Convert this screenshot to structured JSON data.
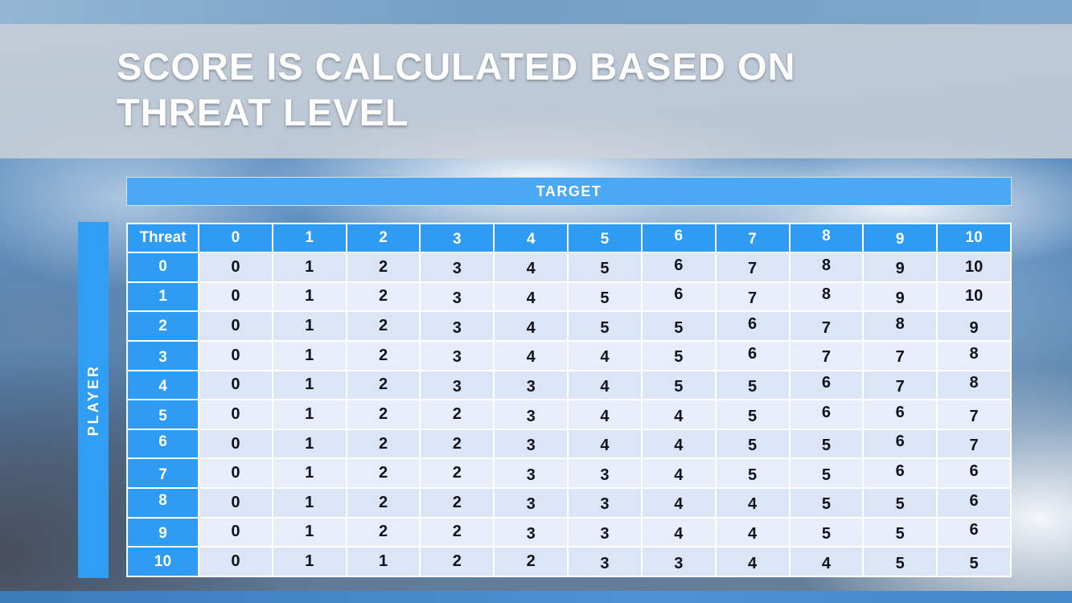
{
  "slide": {
    "title_line1": "SCORE IS CALCULATED BASED ON",
    "title_line2": "THREAT LEVEL"
  },
  "colors": {
    "header_blue": "#2d9cf2",
    "target_bar_blue": "#4aa8f5",
    "row_band_dark": "#dce5f5",
    "row_band_light": "#e8edf9",
    "top_strip_blue": "#7aa6c9",
    "bottom_strip_blue": "#4489c9",
    "title_band_gray": "#cfd3d9",
    "title_text": "#ffffff"
  },
  "chart_data": {
    "type": "table",
    "title": "SCORE IS CALCULATED BASED ON THREAT LEVEL",
    "x_axis_label": "TARGET",
    "y_axis_label": "PLAYER",
    "corner_label": "Threat",
    "column_headers": [
      "0",
      "1",
      "2",
      "3",
      "4",
      "5",
      "6",
      "7",
      "8",
      "9",
      "10"
    ],
    "row_headers": [
      "0",
      "1",
      "2",
      "3",
      "4",
      "5",
      "6",
      "7",
      "8",
      "9",
      "10"
    ],
    "rows": [
      [
        0,
        1,
        2,
        3,
        4,
        5,
        6,
        7,
        8,
        9,
        10
      ],
      [
        0,
        1,
        2,
        3,
        4,
        5,
        6,
        7,
        8,
        9,
        10
      ],
      [
        0,
        1,
        2,
        3,
        4,
        5,
        5,
        6,
        7,
        8,
        9
      ],
      [
        0,
        1,
        2,
        3,
        4,
        4,
        5,
        6,
        7,
        7,
        8
      ],
      [
        0,
        1,
        2,
        3,
        3,
        4,
        5,
        5,
        6,
        7,
        8
      ],
      [
        0,
        1,
        2,
        2,
        3,
        4,
        4,
        5,
        6,
        6,
        7
      ],
      [
        0,
        1,
        2,
        2,
        3,
        4,
        4,
        5,
        5,
        6,
        7
      ],
      [
        0,
        1,
        2,
        2,
        3,
        3,
        4,
        5,
        5,
        6,
        6
      ],
      [
        0,
        1,
        2,
        2,
        3,
        3,
        4,
        4,
        5,
        5,
        6
      ],
      [
        0,
        1,
        2,
        2,
        3,
        3,
        4,
        4,
        5,
        5,
        6
      ],
      [
        0,
        1,
        1,
        2,
        2,
        3,
        3,
        4,
        4,
        5,
        5
      ]
    ]
  }
}
